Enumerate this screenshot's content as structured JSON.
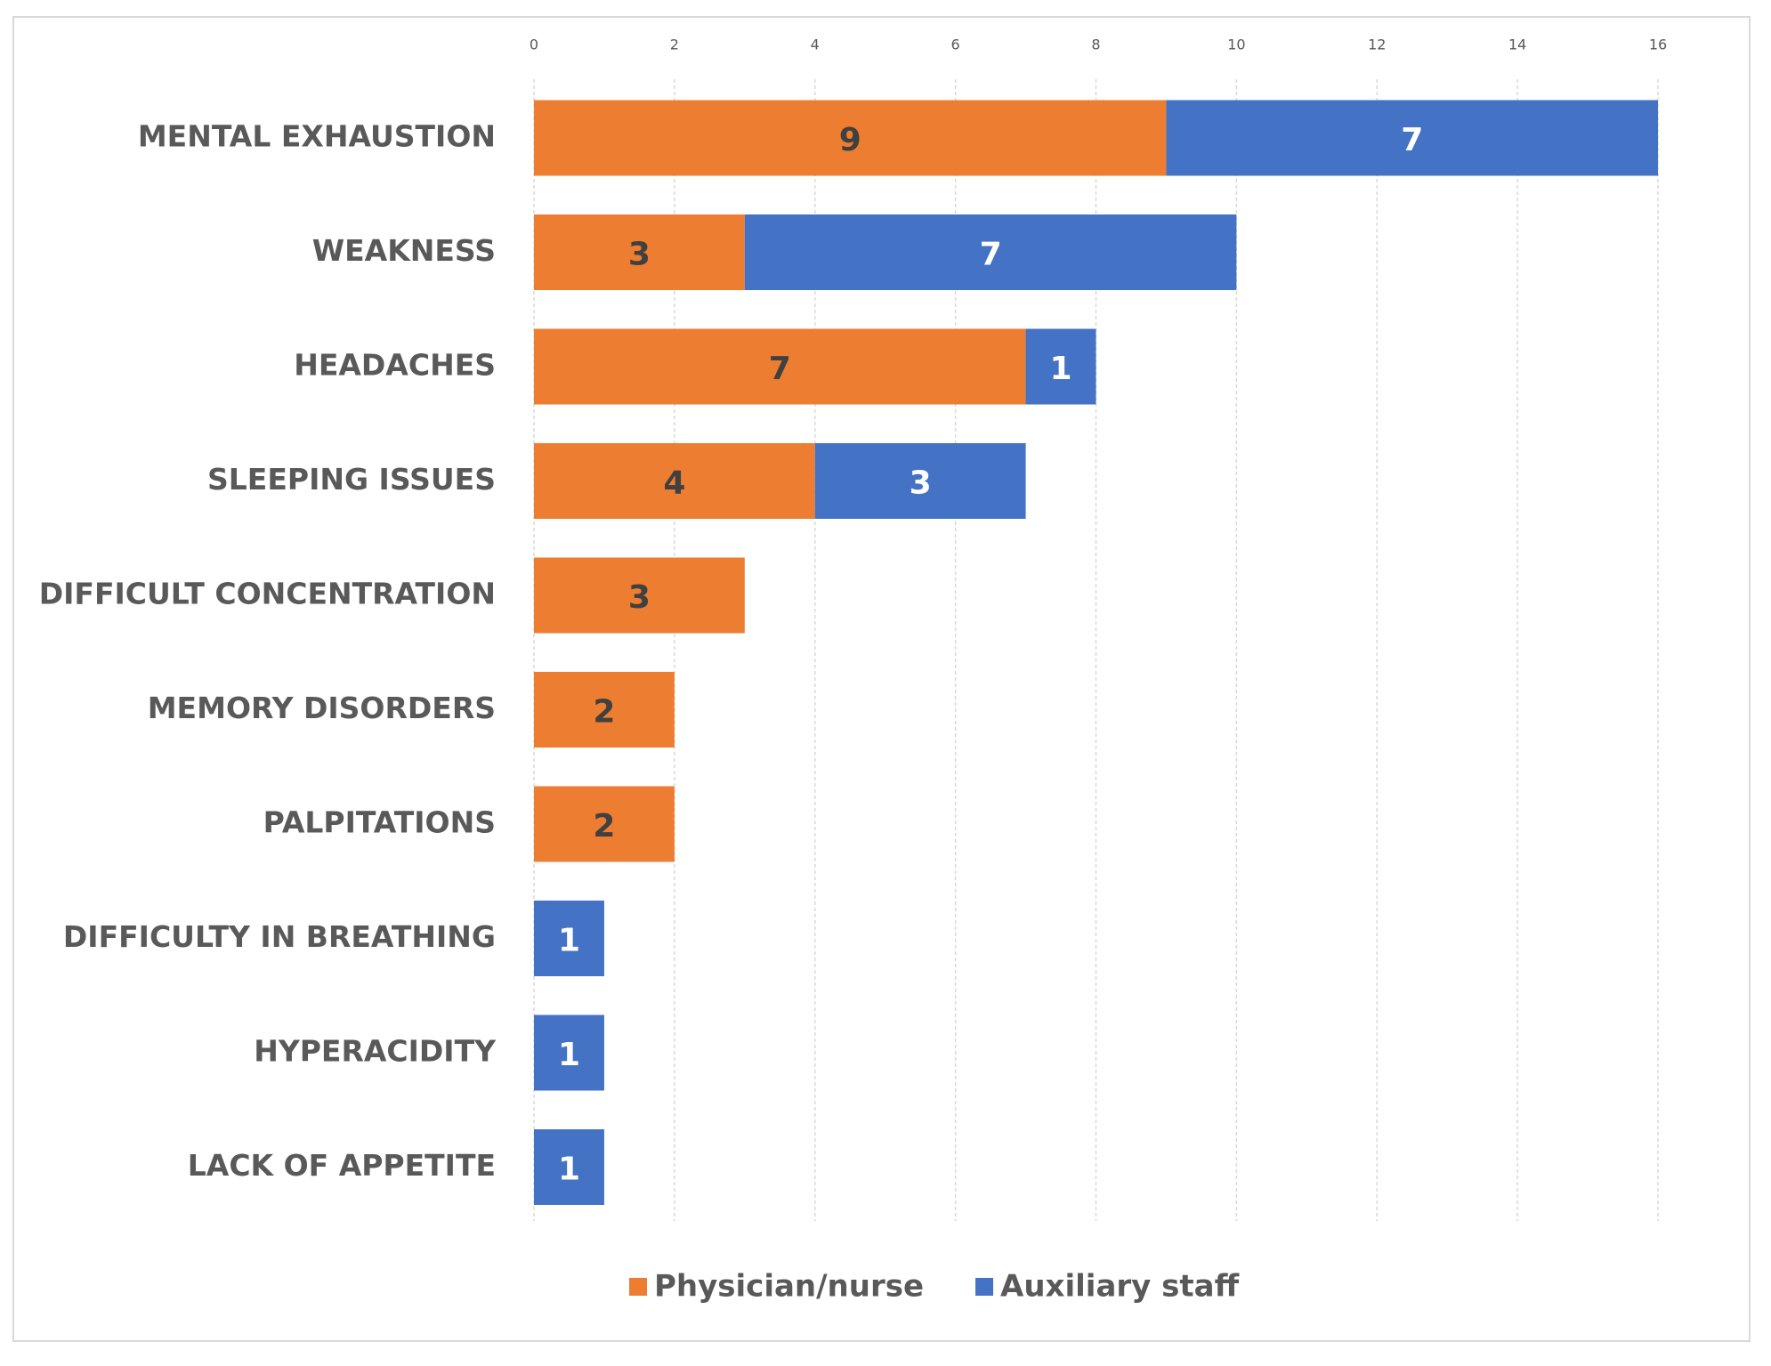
{
  "chart_data": {
    "type": "bar",
    "orientation": "horizontal",
    "stacked": true,
    "categories": [
      "MENTAL EXHAUSTION",
      "WEAKNESS",
      "HEADACHES",
      "SLEEPING ISSUES",
      "DIFFICULT CONCENTRATION",
      "MEMORY DISORDERS",
      "PALPITATIONS",
      "DIFFICULTY IN BREATHING",
      "HYPERACIDITY",
      "LACK OF APPETITE"
    ],
    "series": [
      {
        "name": "Physician/nurse",
        "color": "#ed7d31",
        "label_color": "#404040",
        "values": [
          9,
          3,
          7,
          4,
          3,
          2,
          2,
          null,
          null,
          null
        ]
      },
      {
        "name": "Auxiliary staff",
        "color": "#4472c4",
        "label_color": "#ffffff",
        "values": [
          7,
          7,
          1,
          3,
          null,
          null,
          null,
          1,
          1,
          1
        ]
      }
    ],
    "xlim": [
      0,
      16
    ],
    "xticks": [
      0,
      2,
      4,
      6,
      8,
      10,
      12,
      14,
      16
    ],
    "grid": true,
    "legend": "bottom"
  }
}
